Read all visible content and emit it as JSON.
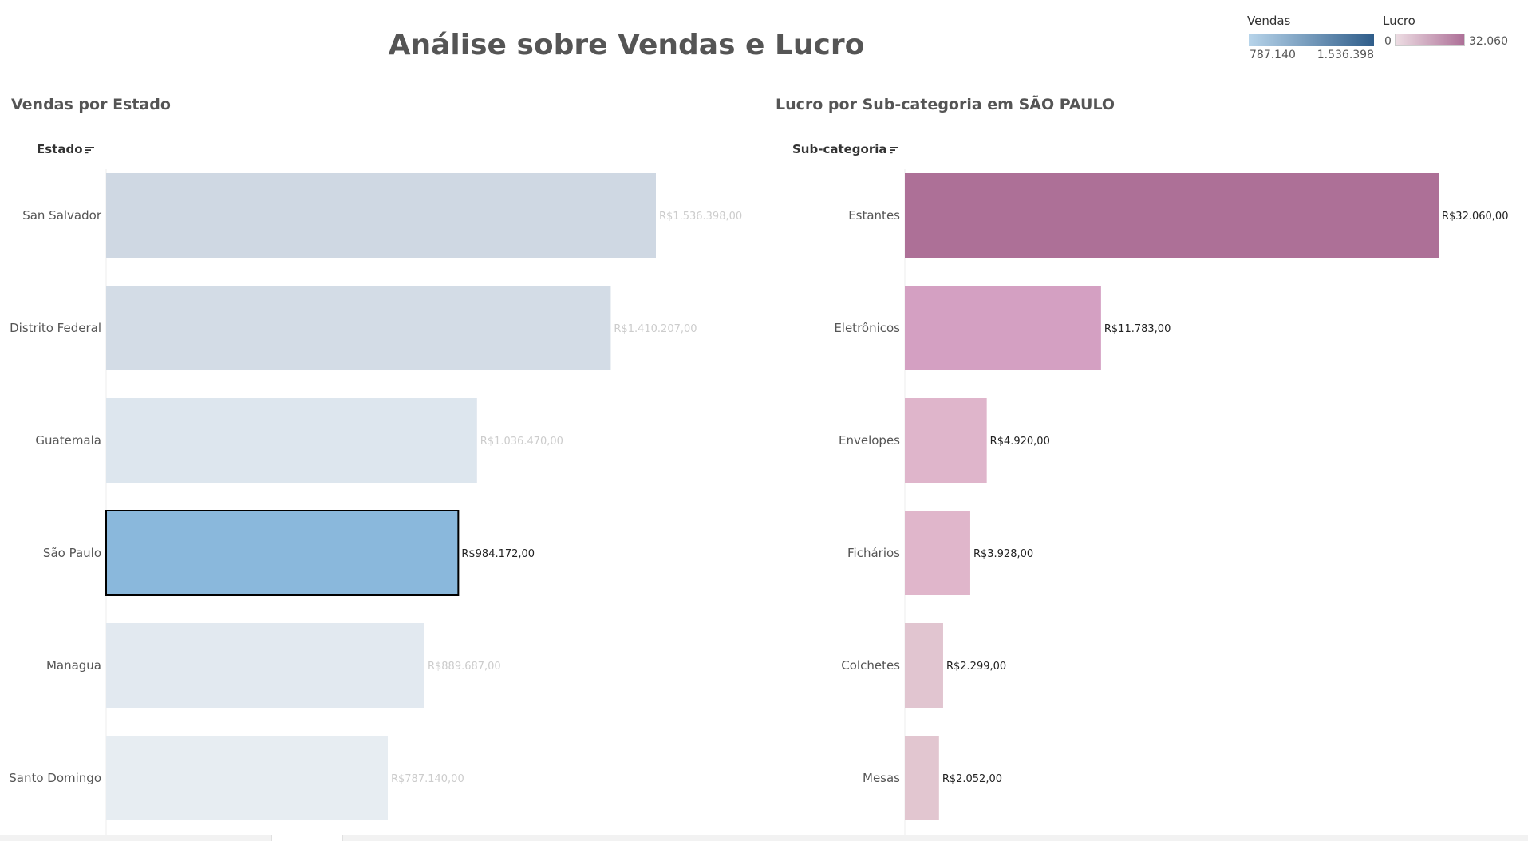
{
  "title": "Análise sobre Vendas e Lucro",
  "legends": {
    "vendas": {
      "title": "Vendas",
      "min_label": "787.140",
      "max_label": "1.536.398",
      "color_from": "#b7d4ea",
      "color_to": "#2f5d8a"
    },
    "lucro": {
      "title": "Lucro",
      "min_label": "0",
      "max_label": "32.060",
      "color_from": "#eddde3",
      "color_to": "#ad6f97"
    }
  },
  "left_panel": {
    "title": "Vendas por Estado",
    "axis_header": "Estado"
  },
  "right_panel": {
    "title": "Lucro por Sub-categoria em SÃO PAULO",
    "axis_header": "Sub-categoria"
  },
  "chart_data": [
    {
      "type": "bar",
      "orientation": "horizontal",
      "title": "Vendas por Estado",
      "xlabel": "",
      "ylabel": "Estado",
      "categories": [
        "San Salvador",
        "Distrito Federal",
        "Guatemala",
        "São Paulo",
        "Managua",
        "Santo Domingo"
      ],
      "values": [
        1536398,
        1410207,
        1036470,
        984172,
        889687,
        787140
      ],
      "value_labels": [
        "R$1.536.398,00",
        "R$1.410.207,00",
        "R$1.036.470,00",
        "R$984.172,00",
        "R$889.687,00",
        "R$787.140,00"
      ],
      "selected": "São Paulo",
      "bar_colors": [
        "#cfd8e3",
        "#d3dce6",
        "#dde6ee",
        "#8ab8dc",
        "#e2e9f0",
        "#e7edf2"
      ],
      "selected_border_color": "#000000",
      "label_color_selected": "#222222",
      "label_color_dim": "#cccccc",
      "xlim": [
        0,
        1536398
      ],
      "grid": false
    },
    {
      "type": "bar",
      "orientation": "horizontal",
      "title": "Lucro por Sub-categoria em SÃO PAULO",
      "xlabel": "",
      "ylabel": "Sub-categoria",
      "categories": [
        "Estantes",
        "Eletrônicos",
        "Envelopes",
        "Fichários",
        "Colchetes",
        "Mesas"
      ],
      "values": [
        32060,
        11783,
        4920,
        3928,
        2299,
        2052
      ],
      "value_labels": [
        "R$32.060,00",
        "R$11.783,00",
        "R$4.920,00",
        "R$3.928,00",
        "R$2.299,00",
        "R$2.052,00"
      ],
      "bar_colors": [
        "#ad7097",
        "#d4a0c2",
        "#dfb5cb",
        "#e0b6cb",
        "#e1c5d0",
        "#e2c6d0"
      ],
      "label_color": "#222222",
      "xlim": [
        0,
        32060
      ],
      "grid": false
    }
  ]
}
